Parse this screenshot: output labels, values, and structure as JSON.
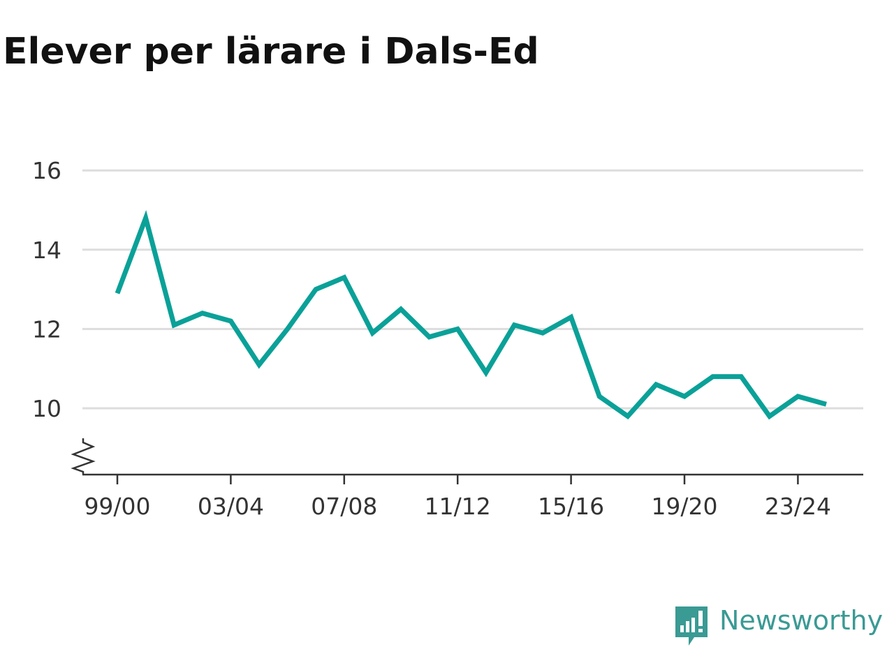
{
  "title": "Elever per lärare i Dals-Ed",
  "brand": {
    "name": "Newsworthy",
    "icon": "newsworthy-logo-icon",
    "color": "#3a9a94"
  },
  "chart_data": {
    "type": "line",
    "title": "Elever per lärare i Dals-Ed",
    "xlabel": "",
    "ylabel": "",
    "x": [
      "99/00",
      "00/01",
      "01/02",
      "02/03",
      "03/04",
      "04/05",
      "05/06",
      "06/07",
      "07/08",
      "08/09",
      "09/10",
      "10/11",
      "11/12",
      "12/13",
      "13/14",
      "14/15",
      "15/16",
      "16/17",
      "17/18",
      "18/19",
      "19/20",
      "20/21",
      "21/22",
      "22/23",
      "23/24",
      "24/25"
    ],
    "x_tick_labels": [
      "99/00",
      "03/04",
      "07/08",
      "11/12",
      "15/16",
      "19/20",
      "23/24"
    ],
    "series": [
      {
        "values": [
          12.9,
          14.8,
          12.1,
          12.4,
          12.2,
          11.1,
          12.0,
          13.0,
          13.3,
          11.9,
          12.5,
          11.8,
          12.0,
          10.9,
          12.1,
          11.9,
          12.3,
          10.3,
          9.8,
          10.6,
          10.3,
          10.8,
          10.8,
          9.8,
          10.3,
          10.1
        ],
        "color": "#0aa198"
      }
    ],
    "y_ticks": [
      10,
      12,
      14,
      16
    ],
    "ylim": [
      8.3,
      16
    ],
    "y_axis_break": true,
    "grid": true,
    "legend": "none"
  }
}
